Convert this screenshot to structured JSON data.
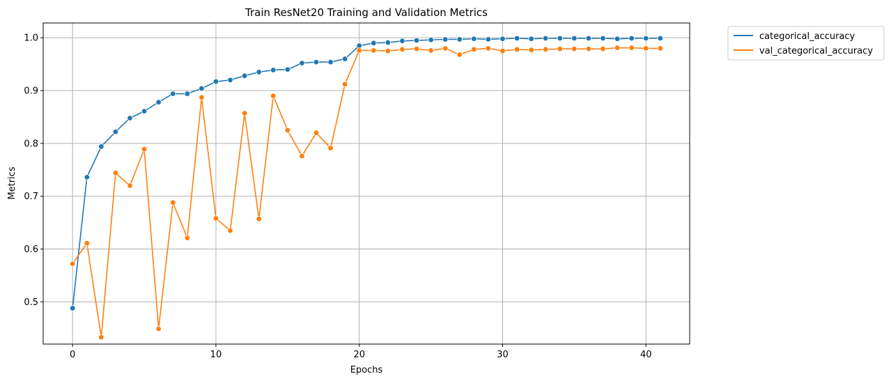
{
  "chart_data": {
    "type": "line",
    "title": "Train ResNet20 Training and Validation Metrics",
    "xlabel": "Epochs",
    "ylabel": "Metrics",
    "xlim": [
      -2.05,
      43.05
    ],
    "ylim": [
      0.42,
      1.028
    ],
    "xticks": [
      0,
      10,
      20,
      30,
      40
    ],
    "yticks": [
      0.5,
      0.6,
      0.7,
      0.8,
      0.9,
      1.0
    ],
    "xtick_labels": [
      "0",
      "10",
      "20",
      "30",
      "40"
    ],
    "ytick_labels": [
      "0.5",
      "0.6",
      "0.7",
      "0.8",
      "0.9",
      "1.0"
    ],
    "grid": true,
    "legend_position": "outside-top-right",
    "x": [
      0,
      1,
      2,
      3,
      4,
      5,
      6,
      7,
      8,
      9,
      10,
      11,
      12,
      13,
      14,
      15,
      16,
      17,
      18,
      19,
      20,
      21,
      22,
      23,
      24,
      25,
      26,
      27,
      28,
      29,
      30,
      31,
      32,
      33,
      34,
      35,
      36,
      37,
      38,
      39,
      40,
      41
    ],
    "series": [
      {
        "name": "categorical_accuracy",
        "color": "#1f77b4",
        "values": [
          0.488,
          0.736,
          0.794,
          0.822,
          0.848,
          0.861,
          0.878,
          0.894,
          0.894,
          0.904,
          0.917,
          0.92,
          0.928,
          0.935,
          0.939,
          0.94,
          0.952,
          0.954,
          0.954,
          0.96,
          0.985,
          0.99,
          0.991,
          0.994,
          0.995,
          0.996,
          0.997,
          0.997,
          0.998,
          0.997,
          0.998,
          0.999,
          0.998,
          0.999,
          0.999,
          0.999,
          0.999,
          0.999,
          0.998,
          0.999,
          0.999,
          0.999
        ]
      },
      {
        "name": "val_categorical_accuracy",
        "color": "#ff7f0e",
        "values": [
          0.572,
          0.611,
          0.433,
          0.744,
          0.72,
          0.789,
          0.449,
          0.688,
          0.621,
          0.887,
          0.658,
          0.635,
          0.857,
          0.657,
          0.89,
          0.825,
          0.776,
          0.82,
          0.791,
          0.912,
          0.976,
          0.976,
          0.975,
          0.978,
          0.979,
          0.976,
          0.98,
          0.968,
          0.978,
          0.98,
          0.975,
          0.978,
          0.977,
          0.978,
          0.979,
          0.979,
          0.979,
          0.979,
          0.981,
          0.981,
          0.98,
          0.98
        ]
      }
    ]
  }
}
